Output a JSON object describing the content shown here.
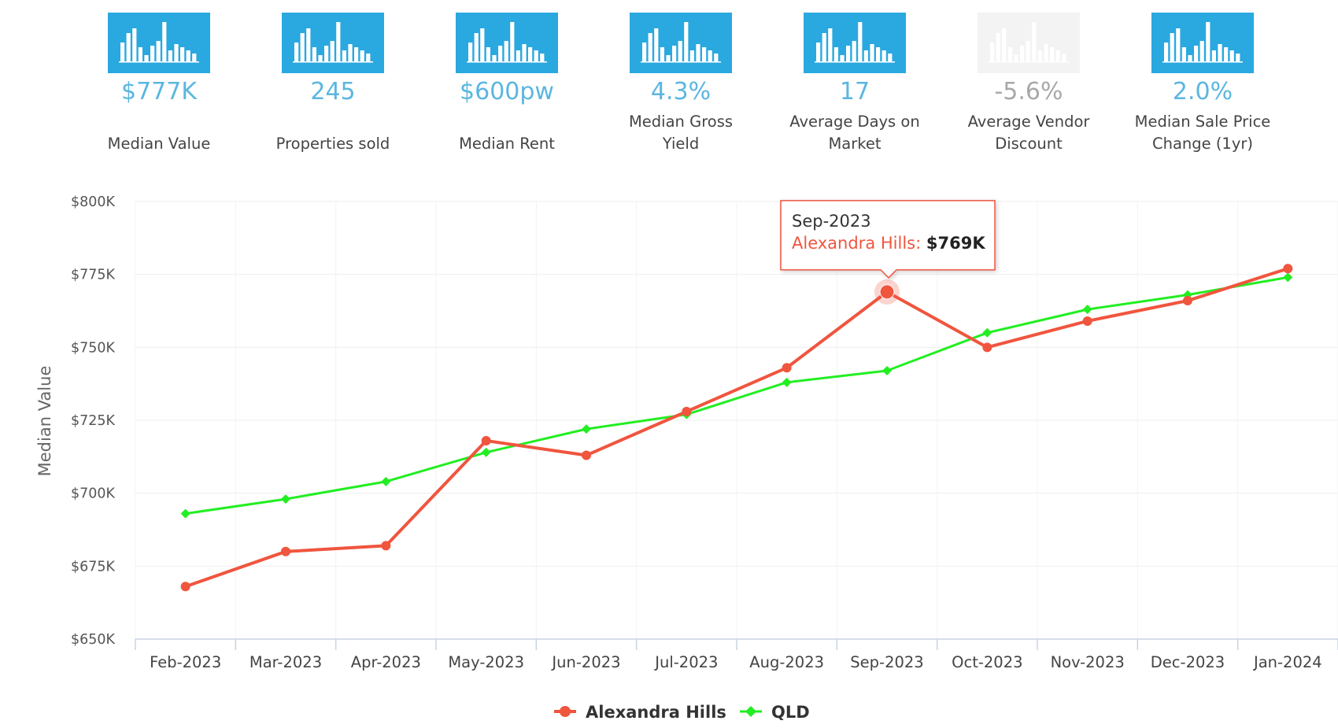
{
  "stats": [
    {
      "value": "$777K",
      "label_lines": [
        "",
        "Median Value"
      ],
      "icon": "bar-chart-icon",
      "color": "#2AA8E0",
      "value_color": "#5BB6E0",
      "muted": false
    },
    {
      "value": "245",
      "label_lines": [
        "",
        "Properties sold"
      ],
      "icon": "bar-chart-icon",
      "color": "#2AA8E0",
      "value_color": "#5BB6E0",
      "muted": false
    },
    {
      "value": "$600pw",
      "label_lines": [
        "",
        "Median Rent"
      ],
      "icon": "bar-chart-icon",
      "color": "#2AA8E0",
      "value_color": "#5BB6E0",
      "muted": false
    },
    {
      "value": "4.3%",
      "label_lines": [
        "Median Gross",
        "Yield"
      ],
      "icon": "bar-chart-icon",
      "color": "#2AA8E0",
      "value_color": "#5BB6E0",
      "muted": false
    },
    {
      "value": "17",
      "label_lines": [
        "Average Days on",
        "Market"
      ],
      "icon": "bar-chart-icon",
      "color": "#2AA8E0",
      "value_color": "#5BB6E0",
      "muted": false
    },
    {
      "value": "-5.6%",
      "label_lines": [
        "Average Vendor",
        "Discount"
      ],
      "icon": "bar-chart-icon",
      "color": "#F3F3F3",
      "value_color": "#A8A8A8",
      "muted": true
    },
    {
      "value": "2.0%",
      "label_lines": [
        "Median Sale Price",
        "Change (1yr)"
      ],
      "icon": "bar-chart-icon",
      "color": "#2AA8E0",
      "value_color": "#5BB6E0",
      "muted": false
    }
  ],
  "chart_data": {
    "type": "line",
    "categories": [
      "Feb-2023",
      "Mar-2023",
      "Apr-2023",
      "May-2023",
      "Jun-2023",
      "Jul-2023",
      "Aug-2023",
      "Sep-2023",
      "Oct-2023",
      "Nov-2023",
      "Dec-2023",
      "Jan-2024"
    ],
    "series": [
      {
        "name": "Alexandra Hills",
        "color": "#F0553E",
        "marker": "circle",
        "values": [
          668,
          680,
          682,
          718,
          713,
          728,
          743,
          769,
          750,
          759,
          766,
          777
        ]
      },
      {
        "name": "QLD",
        "color": "#22EE22",
        "marker": "diamond",
        "values": [
          693,
          698,
          704,
          714,
          722,
          727,
          738,
          742,
          755,
          763,
          768,
          774
        ]
      }
    ],
    "ylabel": "Median Value",
    "ylim": [
      650,
      800
    ],
    "yticks": [
      650,
      675,
      700,
      725,
      750,
      775,
      800
    ],
    "ytick_labels": [
      "$650K",
      "$675K",
      "$700K",
      "$725K",
      "$750K",
      "$775K",
      "$800K"
    ],
    "grid": true,
    "legend": "bottom-center",
    "tooltip": {
      "category": "Sep-2023",
      "series": "Alexandra Hills",
      "label": "Alexandra Hills",
      "value": "$769K"
    }
  }
}
